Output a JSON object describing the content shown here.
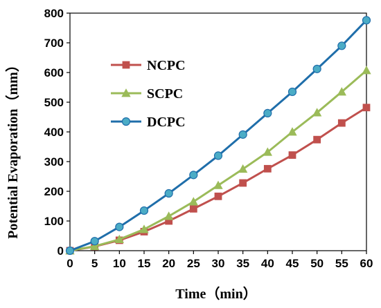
{
  "chart_data": {
    "type": "line",
    "xlabel": "Time（min）",
    "ylabel": "Potential Evaporation（mm）",
    "xlim": [
      0,
      60
    ],
    "ylim": [
      0,
      800
    ],
    "x_ticks": [
      0,
      5,
      10,
      15,
      20,
      25,
      30,
      35,
      40,
      45,
      50,
      55,
      60
    ],
    "y_ticks": [
      0,
      100,
      200,
      300,
      400,
      500,
      600,
      700,
      800
    ],
    "grid": false,
    "legend_position": "top-left",
    "x": [
      0,
      5,
      10,
      15,
      20,
      25,
      30,
      35,
      40,
      45,
      50,
      55,
      60
    ],
    "series": [
      {
        "name": "NCPC",
        "color": "#c0504d",
        "marker": "square",
        "values": [
          0,
          14,
          35,
          64,
          100,
          141,
          183,
          228,
          276,
          322,
          374,
          430,
          482
        ]
      },
      {
        "name": "SCPC",
        "color": "#9bbb59",
        "marker": "triangle",
        "values": [
          0,
          15,
          38,
          72,
          116,
          165,
          220,
          275,
          332,
          400,
          465,
          535,
          607
        ]
      },
      {
        "name": "DCPC",
        "color": "#1f6eaa",
        "marker_fill": "#4bacc6",
        "marker": "circle",
        "values": [
          0,
          32,
          80,
          135,
          193,
          255,
          320,
          391,
          463,
          535,
          612,
          690,
          776
        ]
      }
    ]
  }
}
